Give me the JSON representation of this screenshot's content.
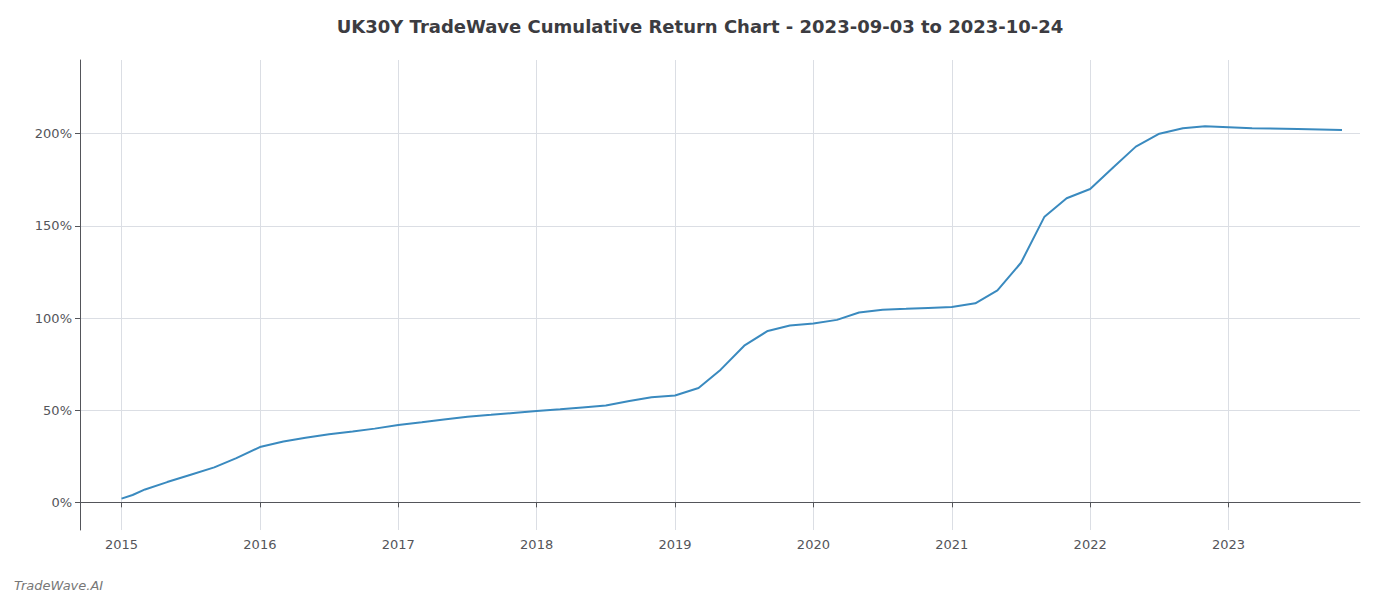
{
  "chart_data": {
    "type": "line",
    "title": "UK30Y TradeWave Cumulative Return Chart - 2023-09-03 to 2023-10-24",
    "annotations": [
      "TradeWave.AI"
    ],
    "x": [
      2015.0,
      2015.08,
      2015.17,
      2015.33,
      2015.5,
      2015.67,
      2015.83,
      2016.0,
      2016.17,
      2016.33,
      2016.5,
      2016.67,
      2016.83,
      2017.0,
      2017.17,
      2017.33,
      2017.5,
      2017.67,
      2017.83,
      2018.0,
      2018.17,
      2018.33,
      2018.5,
      2018.67,
      2018.83,
      2019.0,
      2019.17,
      2019.33,
      2019.5,
      2019.67,
      2019.83,
      2020.0,
      2020.17,
      2020.33,
      2020.5,
      2020.67,
      2020.83,
      2021.0,
      2021.17,
      2021.33,
      2021.5,
      2021.67,
      2021.83,
      2022.0,
      2022.17,
      2022.33,
      2022.5,
      2022.67,
      2022.83,
      2023.0,
      2023.17,
      2023.5,
      2023.82
    ],
    "values": [
      2.0,
      4.0,
      7.0,
      11.0,
      15.0,
      19.0,
      24.0,
      30.0,
      33.0,
      35.0,
      37.0,
      38.5,
      40.0,
      42.0,
      43.5,
      45.0,
      46.5,
      47.5,
      48.5,
      49.5,
      50.5,
      51.5,
      52.5,
      55.0,
      57.0,
      58.0,
      62.0,
      72.0,
      85.0,
      93.0,
      96.0,
      97.0,
      99.0,
      103.0,
      104.5,
      105.0,
      105.5,
      106.0,
      108.0,
      115.0,
      130.0,
      155.0,
      165.0,
      170.0,
      182.0,
      193.0,
      200.0,
      203.0,
      204.0,
      203.5,
      203.0,
      202.5,
      202.0
    ],
    "color": "#3a8abf",
    "xlim": [
      2014.7,
      2023.95
    ],
    "xticks": [
      2015,
      2016,
      2017,
      2018,
      2019,
      2020,
      2021,
      2022,
      2023
    ],
    "ylim": [
      -15,
      240
    ],
    "yticks": [
      {
        "value": 0,
        "label": "0%"
      },
      {
        "value": 50,
        "label": "50%"
      },
      {
        "value": 100,
        "label": "100%"
      },
      {
        "value": 150,
        "label": "150%"
      },
      {
        "value": 200,
        "label": "200%"
      }
    ],
    "grid": true
  }
}
